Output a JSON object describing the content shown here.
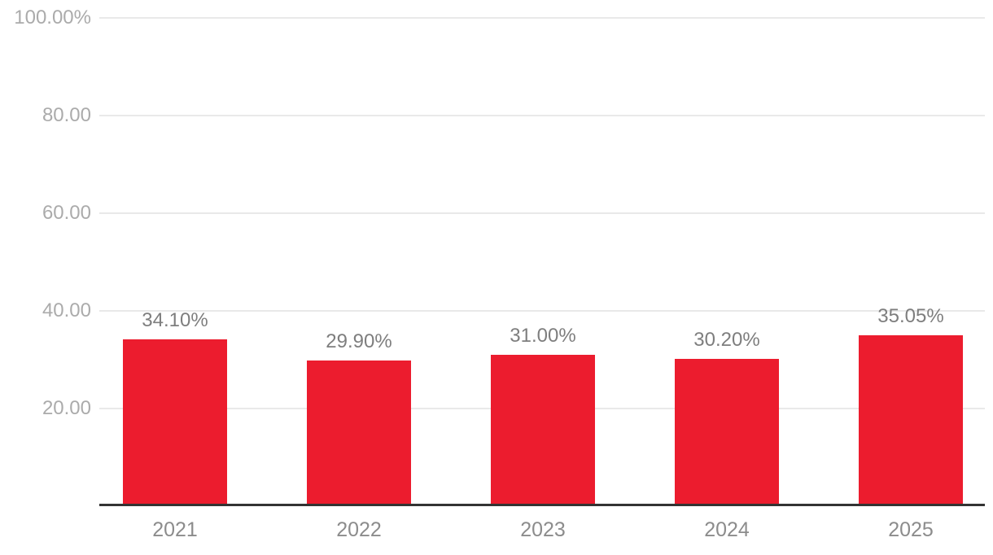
{
  "chart_data": {
    "type": "bar",
    "title": "",
    "xlabel": "",
    "ylabel": "",
    "categories": [
      "2021",
      "2022",
      "2023",
      "2024",
      "2025"
    ],
    "values": [
      34.1,
      29.9,
      31.0,
      30.2,
      35.05
    ],
    "value_labels": [
      "34.10%",
      "29.90%",
      "31.00%",
      "30.20%",
      "35.05%"
    ],
    "ylim": [
      0,
      100
    ],
    "y_ticks": [
      {
        "value": 100,
        "label": "100.00%"
      },
      {
        "value": 80,
        "label": "80.00"
      },
      {
        "value": 60,
        "label": "60.00"
      },
      {
        "value": 40,
        "label": "40.00"
      },
      {
        "value": 20,
        "label": "20.00"
      }
    ],
    "grid": "horizontal",
    "legend": "none",
    "colors": {
      "bar": "#EC1C2E",
      "gridline": "#E9E9E9",
      "axis_line": "#333333",
      "y_tick_label": "#ABABAB",
      "value_label": "#7E7E7E",
      "category_label": "#8C8C8C",
      "background": "#FFFFFF"
    }
  }
}
